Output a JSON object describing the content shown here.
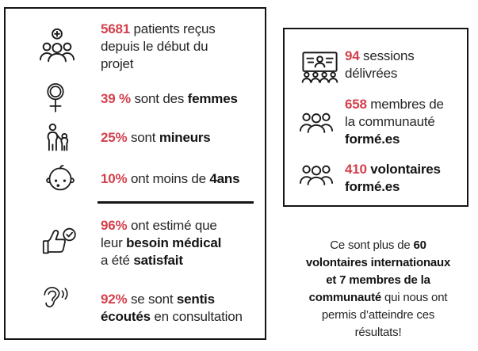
{
  "colors": {
    "accent": "#d4414d",
    "ink": "#262626",
    "border": "#141414"
  },
  "left_panel": {
    "stats": [
      {
        "icon": "medical-team-icon",
        "lines": [
          [
            {
              "t": "5681",
              "r": 1
            },
            {
              "t": " patients reçus"
            }
          ],
          [
            {
              "t": "depuis le début du"
            }
          ],
          [
            {
              "t": "projet"
            }
          ]
        ]
      },
      {
        "icon": "female-symbol-icon",
        "lines": [
          [
            {
              "t": "39 %",
              "r": 1
            },
            {
              "t": " sont des "
            },
            {
              "t": "femmes",
              "b": 1
            }
          ]
        ]
      },
      {
        "icon": "adult-child-icon",
        "lines": [
          [
            {
              "t": "25%",
              "r": 1
            },
            {
              "t": " sont "
            },
            {
              "t": "mineurs",
              "b": 1
            }
          ]
        ]
      },
      {
        "icon": "baby-icon",
        "lines": [
          [
            {
              "t": "10%",
              "r": 1
            },
            {
              "t": " ont moins de "
            },
            {
              "t": "4ans",
              "b": 1
            }
          ]
        ]
      },
      {
        "icon": "thumbs-up-check-icon",
        "lines": [
          [
            {
              "t": "96%",
              "r": 1
            },
            {
              "t": " ont estimé que"
            }
          ],
          [
            {
              "t": "leur "
            },
            {
              "t": "besoin médical",
              "b": 1
            }
          ],
          [
            {
              "t": "a été "
            },
            {
              "t": "satisfait",
              "b": 1
            }
          ]
        ]
      },
      {
        "icon": "ear-listening-icon",
        "lines": [
          [
            {
              "t": "92%",
              "r": 1
            },
            {
              "t": " se sont "
            },
            {
              "t": "sentis",
              "b": 1
            }
          ],
          [
            {
              "t": "écoutés",
              "b": 1
            },
            {
              "t": " en consultation"
            }
          ]
        ]
      }
    ]
  },
  "right_panel": {
    "stats": [
      {
        "icon": "training-board-icon",
        "lines": [
          [
            {
              "t": "94",
              "r": 1
            },
            {
              "t": " sessions"
            }
          ],
          [
            {
              "t": "délivrées"
            }
          ]
        ]
      },
      {
        "icon": "community-group-icon",
        "lines": [
          [
            {
              "t": "658",
              "r": 1
            },
            {
              "t": " membres de"
            }
          ],
          [
            {
              "t": "la communauté"
            }
          ],
          [
            {
              "t": "formé.es",
              "b": 1
            }
          ]
        ]
      },
      {
        "icon": "volunteers-group-icon",
        "lines": [
          [
            {
              "t": "410",
              "r": 1
            },
            {
              "t": " "
            },
            {
              "t": "volontaires",
              "b": 1
            }
          ],
          [
            {
              "t": "formé.es",
              "b": 1
            }
          ]
        ]
      }
    ]
  },
  "footnote": {
    "lines": [
      [
        {
          "t": "Ce sont plus de "
        },
        {
          "t": "60",
          "b": 1
        }
      ],
      [
        {
          "t": "volontaires internationaux",
          "b": 1
        }
      ],
      [
        {
          "t": "et 7 membres de la",
          "b": 1
        }
      ],
      [
        {
          "t": "communauté",
          "b": 1
        },
        {
          "t": " qui nous ont"
        }
      ],
      [
        {
          "t": "permis d’atteindre ces"
        }
      ],
      [
        {
          "t": "résultats!"
        }
      ]
    ]
  }
}
